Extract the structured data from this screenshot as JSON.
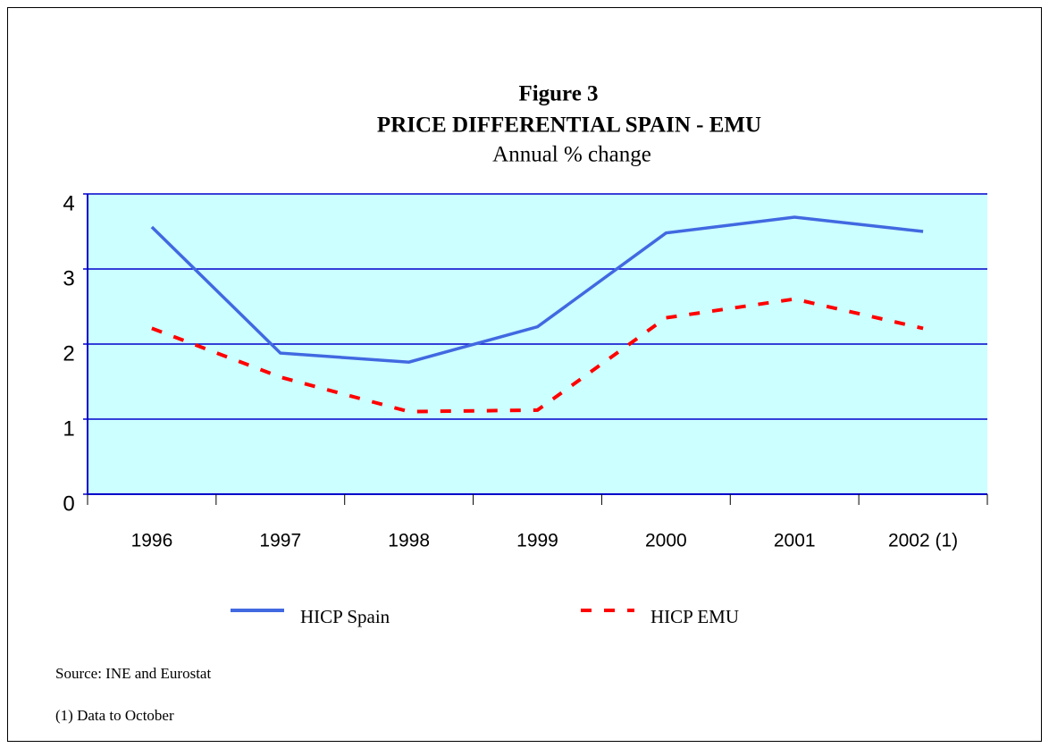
{
  "chart_data": {
    "type": "line",
    "title": [
      "Figure 3",
      "PRICE DIFFERENTIAL SPAIN - EMU"
    ],
    "subtitle": "Annual % change",
    "categories": [
      "1996",
      "1997",
      "1998",
      "1999",
      "2000",
      "2001",
      "2002 (1)"
    ],
    "series": [
      {
        "name": "HICP Spain",
        "color": "#4169e1",
        "dash": false,
        "values": [
          3.56,
          1.88,
          1.76,
          2.23,
          3.48,
          3.69,
          3.5
        ]
      },
      {
        "name": "HICP EMU",
        "color": "#ff0000",
        "dash": true,
        "values": [
          2.21,
          1.56,
          1.1,
          1.12,
          2.35,
          2.6,
          2.21
        ]
      }
    ],
    "ylim": [
      0,
      4
    ],
    "yticks": [
      0,
      1,
      2,
      3,
      4
    ],
    "grid": true,
    "plot_background": "#ccffff",
    "grid_color": "#0000cc",
    "notes": [
      "Source: INE and Eurostat",
      "(1) Data to October"
    ]
  }
}
